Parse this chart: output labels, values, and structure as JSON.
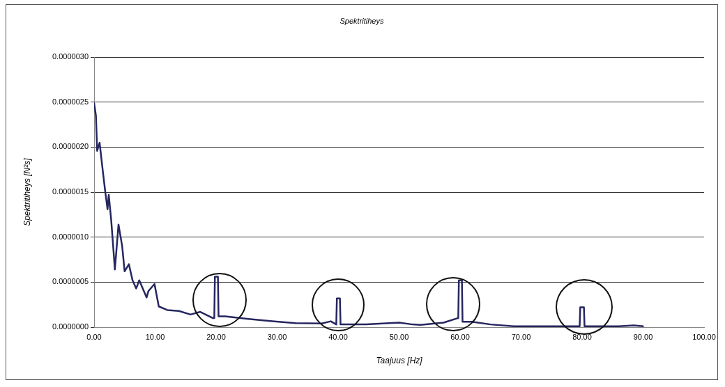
{
  "chart_data": {
    "type": "line",
    "title": "Spektritiheys",
    "xlabel": "Taajuus [Hz]",
    "ylabel": "Spektritiheys [N²s]",
    "xlim": [
      0,
      100
    ],
    "xticks": [
      {
        "value": 0,
        "label": "0.00"
      },
      {
        "value": 10,
        "label": "10.00"
      },
      {
        "value": 20,
        "label": "20.00"
      },
      {
        "value": 30,
        "label": "30.00"
      },
      {
        "value": 40,
        "label": "40.00"
      },
      {
        "value": 50,
        "label": "50.00"
      },
      {
        "value": 60,
        "label": "60.00"
      },
      {
        "value": 70,
        "label": "70.00"
      },
      {
        "value": 80,
        "label": "80.00"
      },
      {
        "value": 90,
        "label": "90.00"
      },
      {
        "value": 100,
        "label": "100.00"
      }
    ],
    "ylim": [
      0,
      3e-06
    ],
    "yticks": [
      {
        "value": 0,
        "label": "0.0000000"
      },
      {
        "value": 5e-07,
        "label": "0.0000005"
      },
      {
        "value": 1e-06,
        "label": "0.0000010"
      },
      {
        "value": 1.5e-06,
        "label": "0.0000015"
      },
      {
        "value": 2e-06,
        "label": "0.0000020"
      },
      {
        "value": 2.5e-06,
        "label": "0.0000025"
      },
      {
        "value": 3e-06,
        "label": "0.0000030"
      }
    ],
    "grid": "y",
    "legend": false,
    "marker": "none",
    "line_style": "solid",
    "x": [
      0,
      0.3,
      0.5,
      0.9,
      1.4,
      1.8,
      2.2,
      2.4,
      2.8,
      3.2,
      3.4,
      4.0,
      4.6,
      5.0,
      5.7,
      6.3,
      6.9,
      7.4,
      8.6,
      8.9,
      9.9,
      10.6,
      12.0,
      13.9,
      15.8,
      17.4,
      19.5,
      19.7,
      19.8,
      20.3,
      20.4,
      21.5,
      25.3,
      29.2,
      33,
      37.3,
      38.8,
      39.7,
      39.8,
      40.3,
      40.4,
      44.6,
      50.0,
      52.2,
      53.5,
      57.3,
      59.6,
      59.7,
      59.8,
      60.3,
      60.4,
      61.9,
      65,
      68.8,
      79.6,
      79.7,
      80.3,
      80.4,
      86,
      88.5,
      90
    ],
    "series": [
      {
        "color": "#262660",
        "values": [
          2.49e-06,
          2.35e-06,
          1.96e-06,
          2.05e-06,
          1.75e-06,
          1.52e-06,
          1.31e-06,
          1.47e-06,
          1.19e-06,
          8.3e-07,
          6.4e-07,
          1.14e-06,
          9e-07,
          6.2e-07,
          7e-07,
          5.2e-07,
          4.3e-07,
          5.2e-07,
          3.3e-07,
          4e-07,
          4.8e-07,
          2.3e-07,
          1.9e-07,
          1.8e-07,
          1.4e-07,
          1.7e-07,
          1e-07,
          1e-07,
          5.6e-07,
          5.6e-07,
          1.2e-07,
          1.2e-07,
          9e-08,
          6.5e-08,
          4.5e-08,
          4e-08,
          6.5e-08,
          3e-08,
          3.2e-07,
          3.2e-07,
          3e-08,
          3e-08,
          5e-08,
          3e-08,
          2.5e-08,
          5e-08,
          1e-07,
          1e-07,
          5.2e-07,
          5.2e-07,
          6e-08,
          6e-08,
          3e-08,
          1e-08,
          1e-08,
          2.2e-07,
          2.2e-07,
          1e-08,
          1e-08,
          2e-08,
          1e-08
        ]
      }
    ]
  }
}
